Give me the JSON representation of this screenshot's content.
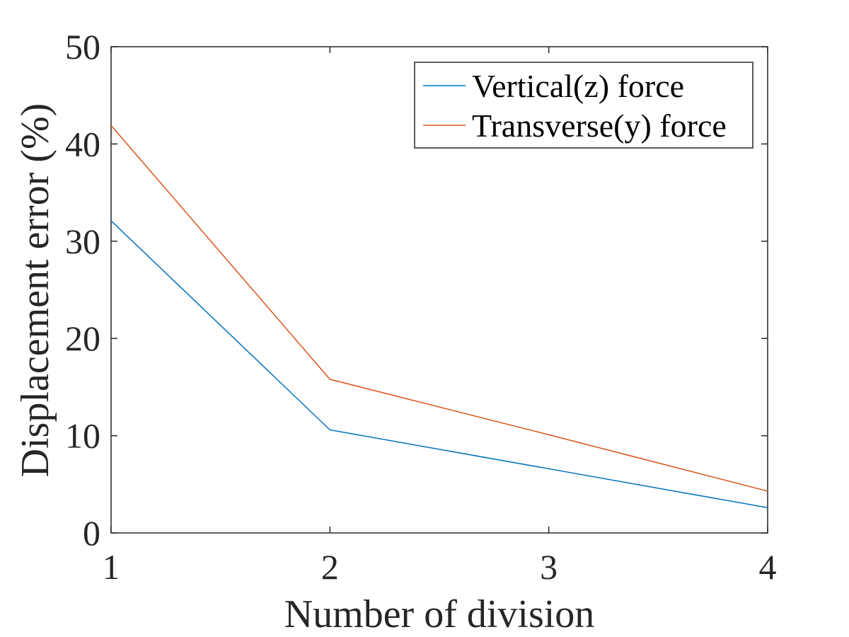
{
  "chart_data": {
    "type": "line",
    "title": "",
    "xlabel": "Number of division",
    "ylabel": "Displacement error (%)",
    "xlim": [
      1,
      4
    ],
    "ylim": [
      0,
      50
    ],
    "x": [
      1,
      2,
      3,
      4
    ],
    "xticks": [
      "1",
      "2",
      "3",
      "4"
    ],
    "yticks": [
      "0",
      "10",
      "20",
      "30",
      "40",
      "50"
    ],
    "grid": false,
    "legend_position": "top-right",
    "series": [
      {
        "name": "Vertical(z) force",
        "color": "#0072BD",
        "values": [
          32.1,
          10.6,
          6.6,
          2.6
        ]
      },
      {
        "name": "Transverse(y) force",
        "color": "#D95319",
        "values": [
          41.9,
          15.8,
          10.1,
          4.3
        ]
      }
    ]
  }
}
